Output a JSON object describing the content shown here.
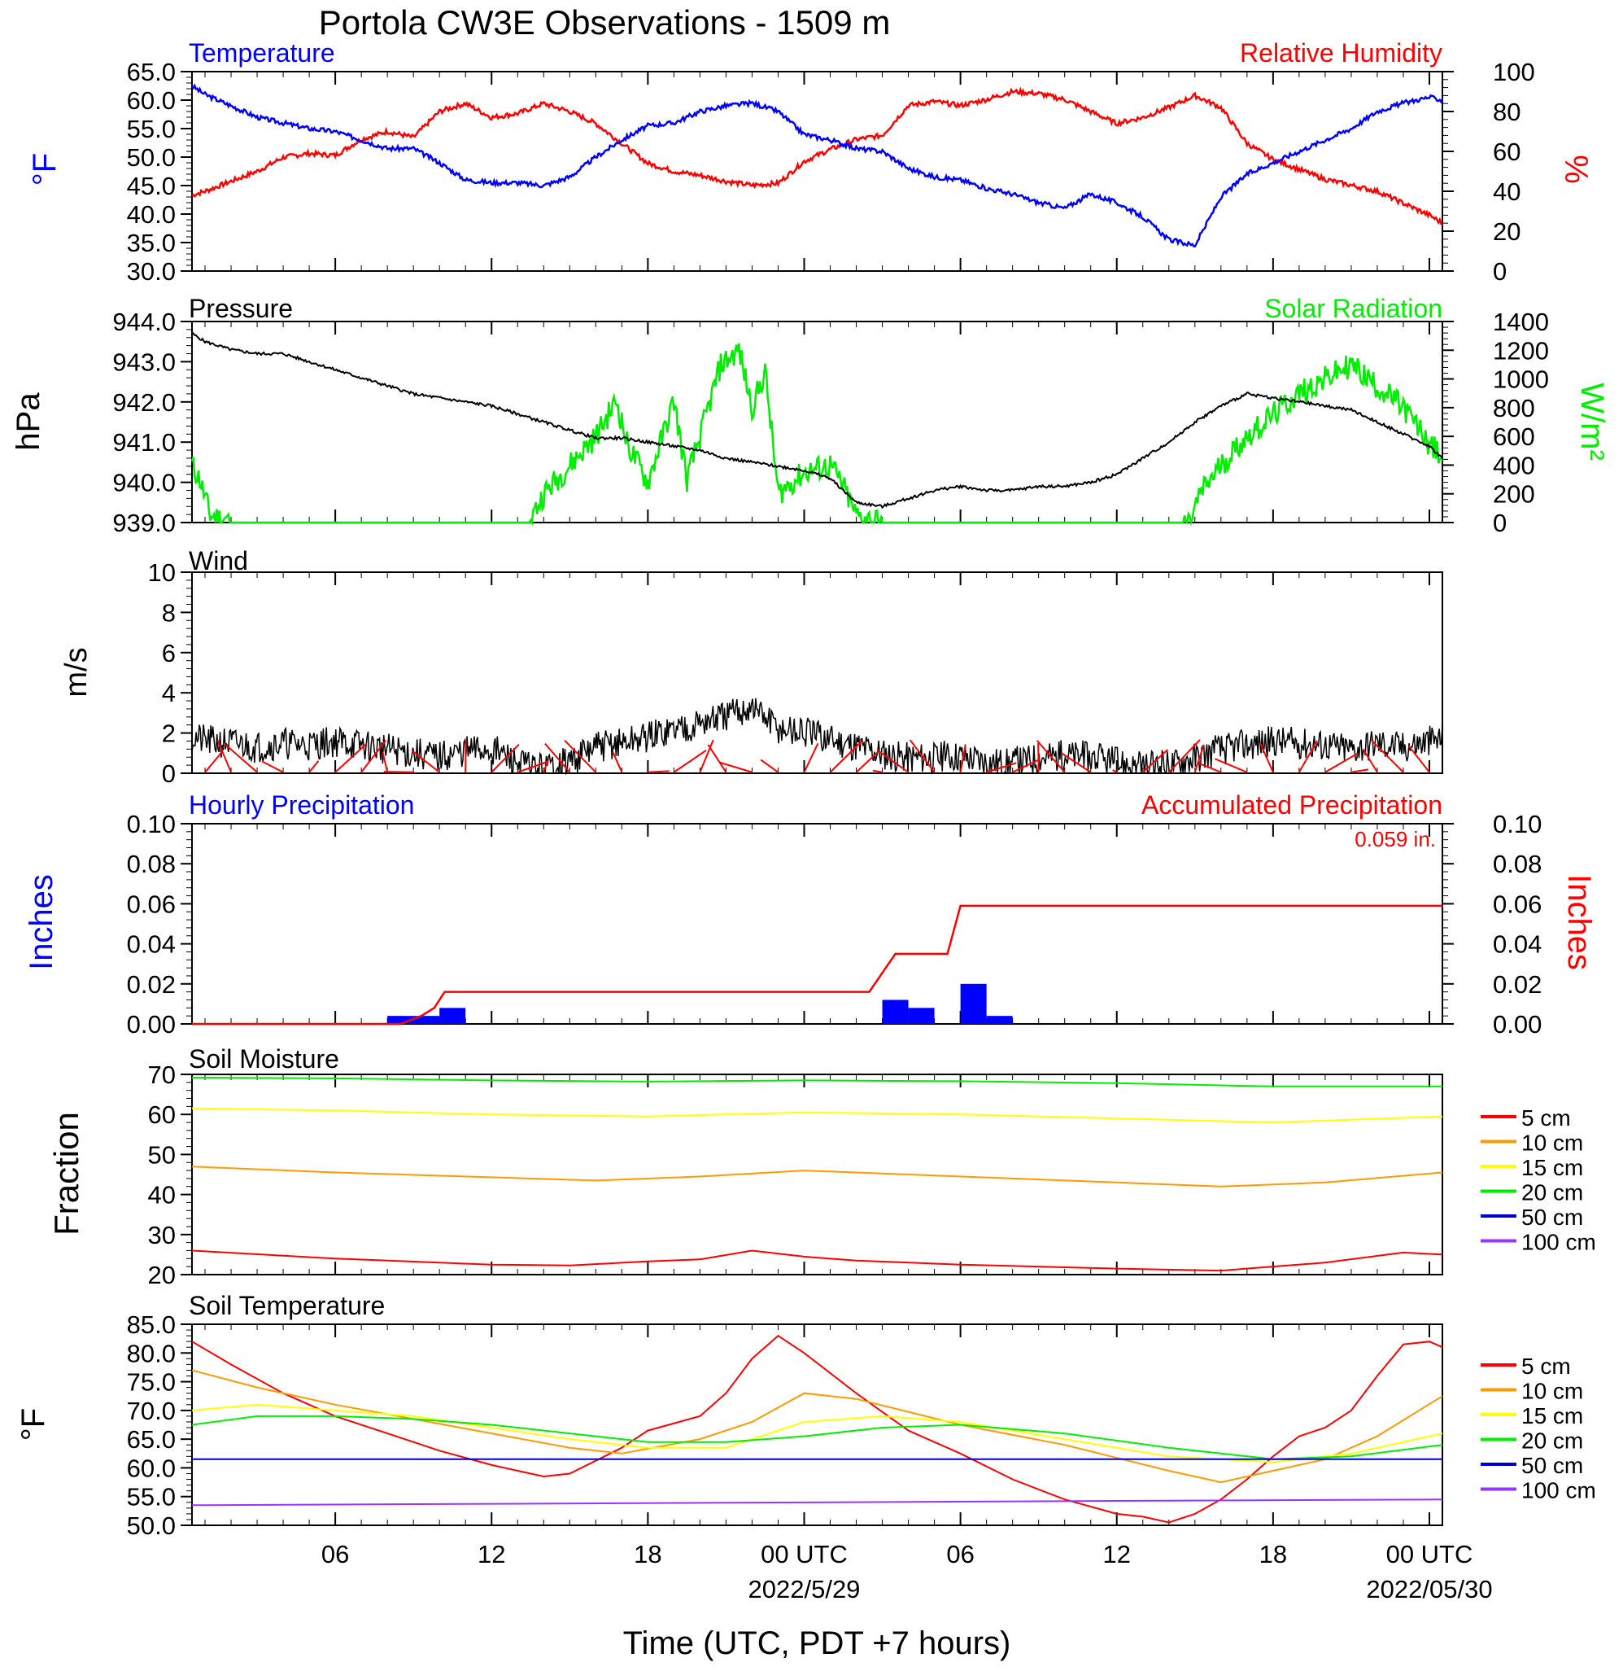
{
  "title": "Portola CW3E Observations - 1509 m",
  "x_axis": {
    "label": "Time (UTC, PDT +7 hours)",
    "ticks": [
      {
        "h": 6,
        "label": "06",
        "date": ""
      },
      {
        "h": 12,
        "label": "12",
        "date": ""
      },
      {
        "h": 18,
        "label": "18",
        "date": ""
      },
      {
        "h": 24,
        "label": "00 UTC",
        "date": "2022/5/29"
      },
      {
        "h": 30,
        "label": "06",
        "date": ""
      },
      {
        "h": 36,
        "label": "12",
        "date": ""
      },
      {
        "h": 42,
        "label": "18",
        "date": ""
      },
      {
        "h": 48,
        "label": "00 UTC",
        "date": "2022/05/30"
      }
    ],
    "range_hours": [
      0.5,
      48.5
    ]
  },
  "panels": {
    "temp_rh": {
      "left_title": "Temperature",
      "right_title": "Relative Humidity",
      "left_ylabel": "°F",
      "right_ylabel": "%",
      "left_ticks": [
        "65.0",
        "60.0",
        "55.0",
        "50.0",
        "45.0",
        "40.0",
        "35.0",
        "30.0"
      ],
      "right_ticks": [
        "100",
        "80",
        "60",
        "40",
        "20",
        "0"
      ]
    },
    "pressure_solar": {
      "left_title": "Pressure",
      "right_title": "Solar Radiation",
      "left_ylabel": "hPa",
      "right_ylabel": "W/m²",
      "left_ticks": [
        "944.0",
        "943.0",
        "942.0",
        "941.0",
        "940.0",
        "939.0"
      ],
      "right_ticks": [
        "1400",
        "1200",
        "1000",
        "800",
        "600",
        "400",
        "200",
        "0"
      ]
    },
    "wind": {
      "left_title": "Wind",
      "left_ylabel": "m/s",
      "left_ticks": [
        "10",
        "8",
        "6",
        "4",
        "2",
        "0"
      ]
    },
    "precip": {
      "left_title": "Hourly Precipitation",
      "right_title": "Accumulated Precipitation",
      "total_label": "0.059 in.",
      "left_ylabel": "Inches",
      "right_ylabel": "Inches",
      "left_ticks": [
        "0.10",
        "0.08",
        "0.06",
        "0.04",
        "0.02",
        "0.00"
      ],
      "right_ticks": [
        "0.10",
        "0.08",
        "0.06",
        "0.04",
        "0.02",
        "0.00"
      ]
    },
    "soil_moisture": {
      "left_title": "Soil Moisture",
      "left_ylabel": "Fraction",
      "left_ticks": [
        "70",
        "60",
        "50",
        "40",
        "30",
        "20"
      ],
      "legend": [
        "5 cm",
        "10 cm",
        "15 cm",
        "20 cm",
        "50 cm",
        "100 cm"
      ]
    },
    "soil_temp": {
      "left_title": "Soil Temperature",
      "left_ylabel": "°F",
      "left_ticks": [
        "85.0",
        "80.0",
        "75.0",
        "70.0",
        "65.0",
        "60.0",
        "55.0",
        "50.0"
      ],
      "legend": [
        "5 cm",
        "10 cm",
        "15 cm",
        "20 cm",
        "50 cm",
        "100 cm"
      ]
    }
  },
  "colors": {
    "temperature": "#0000ff",
    "relative_humidity": "#ff0000",
    "pressure": "#000000",
    "solar": "#00ee00",
    "wind": "#000000",
    "wind_barb": "#ff0000",
    "hourly_precip": "#0000ff",
    "accum_precip": "#ff0000",
    "depth_5cm": "#ff0000",
    "depth_10cm": "#ff9900",
    "depth_15cm": "#ffff00",
    "depth_20cm": "#00ee00",
    "depth_50cm": "#0000cc",
    "depth_100cm": "#9933ff"
  },
  "chart_data": [
    {
      "type": "line",
      "title": "Temperature / Relative Humidity",
      "ylim": [
        30,
        65
      ],
      "y2lim": [
        0,
        100
      ],
      "series": [
        {
          "name": "Temperature",
          "axis": "left",
          "unit": "°F",
          "x": [
            0.5,
            1,
            2,
            3,
            4,
            5,
            6,
            7,
            8,
            9,
            10,
            11,
            12,
            13,
            14,
            15,
            16,
            17,
            18,
            19,
            20,
            21,
            22,
            23,
            24,
            25,
            26,
            27,
            28,
            29,
            30,
            31,
            32,
            33,
            34,
            35,
            36,
            37,
            38,
            39,
            40,
            41,
            42,
            43,
            44,
            45,
            46,
            47,
            48,
            48.5
          ],
          "y": [
            62.5,
            61,
            59,
            57,
            56,
            55,
            54.5,
            53,
            51.5,
            51.5,
            49,
            46,
            45.5,
            45.5,
            45,
            46.5,
            50,
            53,
            55.5,
            56,
            58,
            59,
            59.5,
            58,
            54,
            53,
            51.5,
            51,
            48,
            46.5,
            46,
            44.5,
            43.5,
            42,
            41,
            43.5,
            42,
            39.5,
            35.5,
            34.5,
            43,
            47,
            49,
            51,
            53,
            55,
            58,
            59.5,
            60.5,
            60
          ]
        },
        {
          "name": "Relative Humidity",
          "axis": "right",
          "unit": "%",
          "x": [
            0.5,
            1,
            2,
            3,
            4,
            5,
            6,
            7,
            8,
            9,
            10,
            11,
            12,
            13,
            14,
            15,
            16,
            17,
            18,
            19,
            20,
            21,
            22,
            23,
            24,
            25,
            26,
            27,
            28,
            29,
            30,
            31,
            32,
            33,
            34,
            35,
            36,
            37,
            38,
            39,
            40,
            41,
            42,
            43,
            44,
            45,
            46,
            47,
            48,
            48.5
          ],
          "y": [
            38,
            40,
            45,
            50,
            57,
            59,
            58,
            66,
            70,
            67,
            80,
            84,
            77,
            79,
            84,
            80,
            74,
            64,
            54,
            50,
            48,
            45,
            43,
            44,
            55,
            61,
            66,
            68,
            83,
            85,
            83,
            86,
            90,
            89,
            86,
            80,
            74,
            77,
            82,
            88,
            82,
            64,
            56,
            51,
            46,
            43,
            40,
            34,
            28,
            24
          ]
        }
      ]
    },
    {
      "type": "line",
      "title": "Pressure / Solar Radiation",
      "ylim": [
        939,
        944
      ],
      "y2lim": [
        0,
        1400
      ],
      "series": [
        {
          "name": "Pressure",
          "axis": "left",
          "unit": "hPa",
          "x": [
            0.5,
            1,
            2,
            3,
            4,
            5,
            6,
            7,
            8,
            9,
            10,
            11,
            12,
            13,
            14,
            15,
            16,
            17,
            18,
            19,
            20,
            21,
            22,
            23,
            24,
            25,
            26,
            27,
            28,
            29,
            30,
            31,
            32,
            33,
            34,
            35,
            36,
            37,
            38,
            39,
            40,
            41,
            42,
            43,
            44,
            45,
            46,
            47,
            48,
            48.5
          ],
          "y": [
            943.7,
            943.5,
            943.3,
            943.2,
            943.2,
            943.0,
            942.8,
            942.6,
            942.4,
            942.2,
            942.1,
            942.0,
            941.9,
            941.7,
            941.5,
            941.3,
            941.1,
            941.1,
            941.0,
            940.9,
            940.8,
            940.6,
            940.5,
            940.4,
            940.3,
            940.1,
            939.5,
            939.4,
            939.6,
            939.8,
            939.9,
            939.8,
            939.8,
            939.9,
            939.9,
            940.0,
            940.2,
            940.6,
            941.0,
            941.5,
            941.9,
            942.2,
            942.1,
            942.0,
            941.9,
            941.8,
            941.5,
            941.2,
            940.9,
            940.6
          ]
        },
        {
          "name": "Solar Radiation",
          "axis": "right",
          "unit": "W/m²",
          "x": [
            0.5,
            0.8,
            1.2,
            2,
            4,
            8,
            12,
            13,
            13.6,
            14,
            15,
            16,
            16.8,
            17.2,
            18,
            19,
            19.5,
            20,
            20.8,
            21.5,
            22,
            22.5,
            23,
            24,
            25,
            25.5,
            26,
            27,
            30,
            36,
            37,
            38,
            38.8,
            39.2,
            40,
            41,
            42,
            43,
            44,
            45,
            46,
            47,
            48,
            48.5
          ],
          "y": [
            400,
            300,
            50,
            10,
            0,
            0,
            0,
            0,
            60,
            200,
            400,
            600,
            850,
            550,
            280,
            850,
            300,
            600,
            1100,
            1200,
            800,
            1050,
            200,
            350,
            400,
            250,
            50,
            0,
            0,
            0,
            0,
            0,
            0,
            200,
            400,
            600,
            750,
            900,
            1000,
            1100,
            950,
            800,
            550,
            450
          ]
        }
      ]
    },
    {
      "type": "line",
      "title": "Wind",
      "ylim": [
        0,
        10
      ],
      "series": [
        {
          "name": "Wind",
          "unit": "m/s",
          "x": [
            0.5,
            1,
            2,
            3,
            4,
            5,
            6,
            7,
            8,
            9,
            10,
            11,
            12,
            13,
            14,
            15,
            16,
            17,
            18,
            19,
            20,
            21,
            22,
            23,
            24,
            25,
            26,
            27,
            28,
            29,
            30,
            31,
            32,
            33,
            34,
            35,
            36,
            37,
            38,
            39,
            40,
            41,
            42,
            43,
            44,
            45,
            46,
            47,
            48,
            48.5
          ],
          "y": [
            1.8,
            1.6,
            1.5,
            1.3,
            1.5,
            1.4,
            1.6,
            1.4,
            1.2,
            1.0,
            0.8,
            1.1,
            1.2,
            0.5,
            0.2,
            0.6,
            1.3,
            1.5,
            1.8,
            2.2,
            2.5,
            2.8,
            3.3,
            2.2,
            2.0,
            1.7,
            1.4,
            1.0,
            0.8,
            0.8,
            0.9,
            0.6,
            0.5,
            0.8,
            0.9,
            0.8,
            0.5,
            0.3,
            0.4,
            0.8,
            1.2,
            1.4,
            1.6,
            1.5,
            1.4,
            1.2,
            1.5,
            1.3,
            1.6,
            1.7
          ]
        }
      ]
    },
    {
      "type": "bar",
      "title": "Hourly Precipitation / Accumulated Precipitation",
      "ylim": [
        0,
        0.1
      ],
      "series": [
        {
          "name": "Hourly Precipitation",
          "unit": "in",
          "x": [
            8,
            9,
            10,
            27,
            28,
            30,
            31
          ],
          "y": [
            0.004,
            0.004,
            0.008,
            0.012,
            0.008,
            0.02,
            0.004
          ]
        },
        {
          "name": "Accumulated Precipitation",
          "unit": "in",
          "x": [
            0.5,
            8.5,
            9.3,
            9.8,
            10.2,
            26.5,
            27.5,
            29.5,
            30,
            48.5
          ],
          "y": [
            0.0,
            0.0,
            0.004,
            0.008,
            0.016,
            0.016,
            0.035,
            0.035,
            0.059,
            0.059
          ]
        }
      ]
    },
    {
      "type": "line",
      "title": "Soil Moisture",
      "ylim": [
        20,
        70
      ],
      "series": [
        {
          "name": "5 cm",
          "x": [
            0.5,
            6,
            12,
            15,
            18,
            20,
            22,
            24,
            26,
            30,
            36,
            40,
            44,
            47,
            48.5
          ],
          "y": [
            26,
            24,
            22.5,
            22.3,
            23.3,
            23.8,
            26,
            24.5,
            23.5,
            22.5,
            21.5,
            21,
            23,
            25.5,
            25
          ]
        },
        {
          "name": "10 cm",
          "x": [
            0.5,
            6,
            12,
            16,
            20,
            24,
            28,
            32,
            36,
            40,
            44,
            48.5
          ],
          "y": [
            47,
            45.5,
            44.3,
            43.5,
            44.5,
            46,
            45,
            44,
            43,
            42,
            43,
            45.5
          ]
        },
        {
          "name": "15 cm",
          "x": [
            0.5,
            6,
            12,
            18,
            24,
            30,
            36,
            42,
            48.5
          ],
          "y": [
            61.5,
            61,
            60,
            59.5,
            60.5,
            60,
            59,
            58,
            59.5
          ]
        },
        {
          "name": "20 cm",
          "x": [
            0.5,
            6,
            12,
            18,
            24,
            30,
            36,
            42,
            48.5
          ],
          "y": [
            69.2,
            69,
            68.5,
            68.2,
            68.5,
            68.3,
            67.8,
            67,
            67
          ]
        }
      ]
    },
    {
      "type": "line",
      "title": "Soil Temperature",
      "ylim": [
        50,
        85
      ],
      "series": [
        {
          "name": "5 cm",
          "x": [
            0.5,
            2,
            4,
            6,
            8,
            10,
            12,
            14,
            15,
            17,
            18,
            20,
            21,
            22,
            23,
            24,
            26,
            28,
            30,
            32,
            34,
            36,
            37,
            38,
            39,
            40,
            41,
            42,
            43,
            44,
            45,
            46,
            47,
            48,
            48.5
          ],
          "y": [
            82,
            78,
            73,
            69,
            66,
            63,
            60.5,
            58.5,
            59,
            63.5,
            66.5,
            69,
            73,
            79,
            83,
            80,
            73,
            66.5,
            62.5,
            58,
            54.5,
            52,
            51.5,
            50.5,
            52,
            54.5,
            58,
            62,
            65.5,
            67,
            70,
            76,
            81.5,
            82,
            81
          ]
        },
        {
          "name": "10 cm",
          "x": [
            0.5,
            3,
            6,
            9,
            12,
            15,
            17,
            20,
            22,
            24,
            26,
            30,
            34,
            38,
            40,
            42,
            44,
            46,
            48.5
          ],
          "y": [
            77,
            74,
            71,
            68.5,
            66,
            63.5,
            62.5,
            65,
            68,
            73,
            72,
            67.5,
            64,
            59.5,
            57.5,
            59.5,
            61.5,
            65.5,
            72.5
          ]
        },
        {
          "name": "15 cm",
          "x": [
            0.5,
            3,
            6,
            9,
            12,
            15,
            18,
            21,
            24,
            27,
            30,
            34,
            38,
            42,
            45,
            48.5
          ],
          "y": [
            70,
            71,
            70,
            69,
            67,
            65,
            63.5,
            63.5,
            68,
            69,
            68,
            65,
            62,
            61,
            62.5,
            66
          ]
        },
        {
          "name": "20 cm",
          "x": [
            0.5,
            3,
            6,
            9,
            12,
            15,
            18,
            21,
            24,
            27,
            30,
            34,
            38,
            42,
            45,
            48.5
          ],
          "y": [
            67.5,
            69,
            69,
            68.5,
            67.5,
            66,
            64.5,
            64.5,
            65.5,
            67,
            67.5,
            66,
            63.5,
            61.5,
            62,
            64
          ]
        },
        {
          "name": "50 cm",
          "x": [
            0.5,
            48.5
          ],
          "y": [
            61.5,
            61.5
          ]
        },
        {
          "name": "100 cm",
          "x": [
            0.5,
            48.5
          ],
          "y": [
            53.5,
            54.5
          ]
        }
      ]
    }
  ]
}
